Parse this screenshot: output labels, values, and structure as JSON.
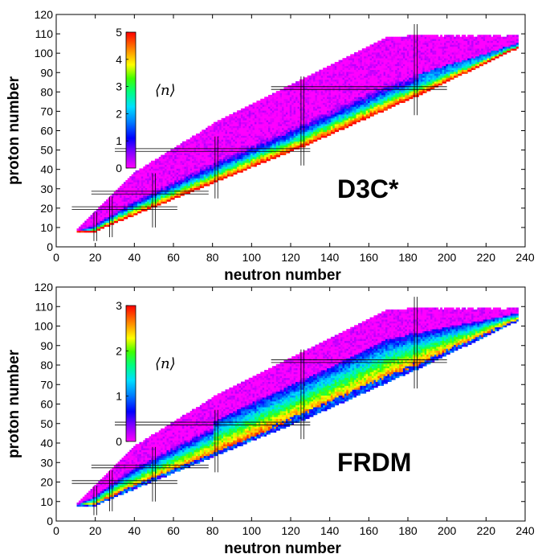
{
  "chart_data": [
    {
      "type": "heatmap",
      "panel": "top",
      "model_label": "D3C*",
      "xlabel": "neutron number",
      "ylabel": "proton number",
      "xlim": [
        0,
        240
      ],
      "ylim": [
        0,
        120
      ],
      "xticks": [
        "0",
        "20",
        "40",
        "60",
        "80",
        "100",
        "120",
        "140",
        "160",
        "180",
        "200",
        "220",
        "240"
      ],
      "yticks": [
        "0",
        "10",
        "20",
        "30",
        "40",
        "50",
        "60",
        "70",
        "80",
        "90",
        "100",
        "110",
        "120"
      ],
      "colorbar": {
        "label": "⟨n⟩",
        "min": 0,
        "max": 5,
        "ticks": [
          "0",
          "1",
          "2",
          "3",
          "4",
          "5"
        ]
      },
      "magic_neutron": [
        20,
        28,
        50,
        82,
        126,
        184
      ],
      "magic_proton": [
        20,
        28,
        50,
        82
      ]
    },
    {
      "type": "heatmap",
      "panel": "bottom",
      "model_label": "FRDM",
      "xlabel": "neutron number",
      "ylabel": "proton number",
      "xlim": [
        0,
        240
      ],
      "ylim": [
        0,
        120
      ],
      "xticks": [
        "0",
        "20",
        "40",
        "60",
        "80",
        "100",
        "120",
        "140",
        "160",
        "180",
        "200",
        "220",
        "240"
      ],
      "yticks": [
        "0",
        "10",
        "20",
        "30",
        "40",
        "50",
        "60",
        "70",
        "80",
        "90",
        "100",
        "110",
        "120"
      ],
      "colorbar": {
        "label": "⟨n⟩",
        "min": 0,
        "max": 3,
        "ticks": [
          "0",
          "1",
          "2",
          "3"
        ]
      },
      "magic_neutron": [
        20,
        28,
        50,
        82,
        126,
        184
      ],
      "magic_proton": [
        20,
        28,
        50,
        82
      ]
    }
  ],
  "colors": {
    "low": "#ff00ff",
    "mid": "#00c0ff",
    "high": "#ff0000"
  }
}
